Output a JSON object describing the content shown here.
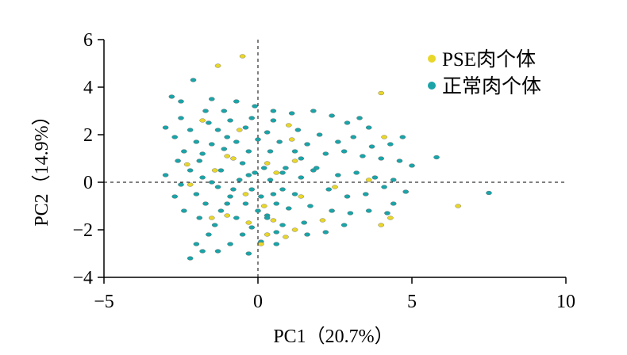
{
  "chart_data": {
    "type": "scatter",
    "xlabel": "PC1（20.7%）",
    "ylabel": "PC2（14.9%）",
    "xlim": [
      -5,
      10
    ],
    "ylim": [
      -4,
      6
    ],
    "xticks": [
      -5,
      0,
      5,
      10
    ],
    "yticks": [
      -4,
      -2,
      0,
      2,
      4,
      6
    ],
    "x_tick_labels": [
      "−5",
      "0",
      "5",
      "10"
    ],
    "y_tick_labels": [
      "−4",
      "−2",
      "0",
      "2",
      "4",
      "6"
    ],
    "reference_lines": {
      "x": 0,
      "y": 0,
      "style": "dashed"
    },
    "grid": false,
    "legend_position": "top-right",
    "series": [
      {
        "name": "PSE肉个体",
        "color": "#e8d62a",
        "points": [
          [
            -1.3,
            4.9
          ],
          [
            -0.5,
            5.3
          ],
          [
            4.0,
            3.75
          ],
          [
            -1.8,
            2.6
          ],
          [
            1.0,
            2.4
          ],
          [
            -0.6,
            2.2
          ],
          [
            4.1,
            1.9
          ],
          [
            1.1,
            1.8
          ],
          [
            -1.0,
            1.1
          ],
          [
            -0.8,
            1.0
          ],
          [
            0.3,
            0.8
          ],
          [
            1.2,
            0.9
          ],
          [
            -2.3,
            0.75
          ],
          [
            -1.4,
            0.5
          ],
          [
            0.6,
            0.4
          ],
          [
            3.6,
            0.1
          ],
          [
            2.5,
            -0.2
          ],
          [
            -2.2,
            -0.1
          ],
          [
            -0.4,
            -0.5
          ],
          [
            0.2,
            -1.0
          ],
          [
            1.4,
            -0.6
          ],
          [
            -1.0,
            -1.4
          ],
          [
            -1.5,
            -1.5
          ],
          [
            4.3,
            -1.5
          ],
          [
            0.5,
            -1.6
          ],
          [
            2.1,
            -1.6
          ],
          [
            4.0,
            -1.8
          ],
          [
            -0.3,
            -1.7
          ],
          [
            1.2,
            -2.0
          ],
          [
            0.3,
            -2.2
          ],
          [
            0.9,
            -2.3
          ],
          [
            0.1,
            -2.6
          ],
          [
            6.5,
            -1.0
          ]
        ]
      },
      {
        "name": "正常肉个体",
        "color": "#1aa4a8",
        "points": [
          [
            -2.1,
            4.3
          ],
          [
            -2.8,
            3.6
          ],
          [
            -2.5,
            3.4
          ],
          [
            -1.5,
            3.5
          ],
          [
            -0.7,
            3.4
          ],
          [
            -1.7,
            3.0
          ],
          [
            -1.1,
            3.0
          ],
          [
            -2.5,
            2.7
          ],
          [
            -1.6,
            2.5
          ],
          [
            -0.9,
            2.6
          ],
          [
            -0.2,
            2.7
          ],
          [
            0.5,
            2.6
          ],
          [
            -3.0,
            2.3
          ],
          [
            -2.2,
            2.2
          ],
          [
            -1.3,
            2.2
          ],
          [
            -0.4,
            2.3
          ],
          [
            0.3,
            2.1
          ],
          [
            1.3,
            2.2
          ],
          [
            -2.7,
            1.9
          ],
          [
            -2.0,
            1.7
          ],
          [
            -1.5,
            1.6
          ],
          [
            -0.7,
            1.7
          ],
          [
            0.0,
            1.8
          ],
          [
            0.7,
            1.7
          ],
          [
            1.6,
            1.6
          ],
          [
            -2.4,
            1.3
          ],
          [
            -1.8,
            1.2
          ],
          [
            -1.1,
            1.4
          ],
          [
            -0.3,
            1.3
          ],
          [
            0.4,
            1.3
          ],
          [
            1.4,
            1.0
          ],
          [
            -2.6,
            0.9
          ],
          [
            -1.9,
            0.9
          ],
          [
            -0.5,
            0.8
          ],
          [
            0.2,
            0.6
          ],
          [
            0.9,
            0.6
          ],
          [
            1.8,
            0.5
          ],
          [
            -2.2,
            0.5
          ],
          [
            -1.2,
            0.5
          ],
          [
            -0.1,
            0.4
          ],
          [
            0.8,
            0.4
          ],
          [
            -3.0,
            0.3
          ],
          [
            -1.8,
            0.2
          ],
          [
            -0.6,
            0.1
          ],
          [
            0.4,
            0.1
          ],
          [
            1.4,
            0.2
          ],
          [
            -2.5,
            -0.1
          ],
          [
            -1.3,
            -0.2
          ],
          [
            -0.2,
            -0.3
          ],
          [
            0.8,
            -0.3
          ],
          [
            -2.0,
            -0.5
          ],
          [
            -0.9,
            -0.6
          ],
          [
            0.1,
            -0.6
          ],
          [
            1.2,
            -0.5
          ],
          [
            -1.7,
            -0.9
          ],
          [
            -0.4,
            -0.9
          ],
          [
            0.6,
            -0.9
          ],
          [
            -2.4,
            -1.2
          ],
          [
            -1.2,
            -1.2
          ],
          [
            0.0,
            -1.2
          ],
          [
            1.0,
            -1.1
          ],
          [
            -1.9,
            -1.5
          ],
          [
            -0.7,
            -1.5
          ],
          [
            0.3,
            -1.4
          ],
          [
            -1.4,
            -1.8
          ],
          [
            -0.2,
            -1.9
          ],
          [
            0.8,
            -1.8
          ],
          [
            -1.6,
            -2.2
          ],
          [
            -0.5,
            -2.2
          ],
          [
            0.6,
            -2.1
          ],
          [
            -2.0,
            -2.6
          ],
          [
            -0.9,
            -2.6
          ],
          [
            0.1,
            -2.5
          ],
          [
            -1.3,
            -2.9
          ],
          [
            -0.3,
            -3.0
          ],
          [
            -1.8,
            -2.9
          ],
          [
            -2.2,
            -3.2
          ],
          [
            1.1,
            2.9
          ],
          [
            1.8,
            3.0
          ],
          [
            2.4,
            2.8
          ],
          [
            2.9,
            2.5
          ],
          [
            3.3,
            2.7
          ],
          [
            3.6,
            2.3
          ],
          [
            2.0,
            2.0
          ],
          [
            2.6,
            1.7
          ],
          [
            3.1,
            1.9
          ],
          [
            3.7,
            1.5
          ],
          [
            4.3,
            1.6
          ],
          [
            4.7,
            1.9
          ],
          [
            2.2,
            1.2
          ],
          [
            2.8,
            1.3
          ],
          [
            3.4,
            1.1
          ],
          [
            4.0,
            1.0
          ],
          [
            4.6,
            0.9
          ],
          [
            5.0,
            0.7
          ],
          [
            1.9,
            0.6
          ],
          [
            2.6,
            0.3
          ],
          [
            3.2,
            0.4
          ],
          [
            3.8,
            0.2
          ],
          [
            4.4,
            0.1
          ],
          [
            5.8,
            1.05
          ],
          [
            2.3,
            -0.3
          ],
          [
            2.9,
            -0.6
          ],
          [
            3.5,
            -0.5
          ],
          [
            4.1,
            -0.2
          ],
          [
            4.8,
            -0.4
          ],
          [
            7.5,
            -0.45
          ],
          [
            1.7,
            -1.0
          ],
          [
            2.4,
            -1.2
          ],
          [
            3.0,
            -1.3
          ],
          [
            3.6,
            -1.2
          ],
          [
            4.2,
            -1.3
          ],
          [
            4.4,
            -0.9
          ],
          [
            1.5,
            -1.7
          ],
          [
            2.2,
            -2.1
          ],
          [
            2.8,
            -1.8
          ],
          [
            0.5,
            3.0
          ],
          [
            -0.1,
            3.2
          ],
          [
            0.6,
            -2.6
          ],
          [
            -1.0,
            -0.9
          ],
          [
            -1.5,
            0.0
          ],
          [
            -0.8,
            -0.3
          ],
          [
            0.5,
            -0.5
          ],
          [
            -0.3,
            0.3
          ],
          [
            0.3,
            -1.5
          ],
          [
            -1.0,
            1.9
          ],
          [
            1.2,
            1.3
          ],
          [
            -2.7,
            -0.6
          ],
          [
            1.6,
            -2.2
          ]
        ]
      }
    ]
  }
}
